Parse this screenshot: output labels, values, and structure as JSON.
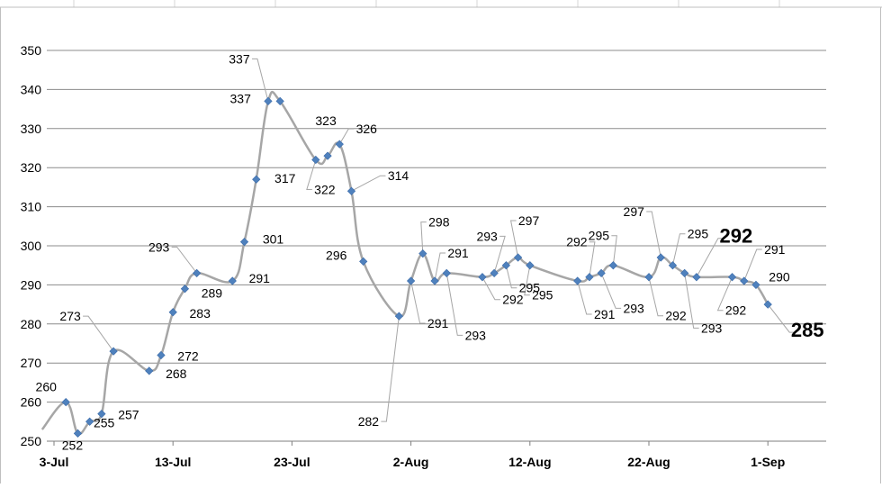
{
  "chart_data": {
    "type": "line",
    "title": "",
    "xlabel": "",
    "ylabel": "",
    "ylim": [
      250,
      350
    ],
    "yticks": [
      250,
      260,
      270,
      280,
      290,
      300,
      310,
      320,
      330,
      340,
      350
    ],
    "xticks": [
      "3-Jul",
      "13-Jul",
      "23-Jul",
      "2-Aug",
      "12-Aug",
      "22-Aug",
      "1-Sep"
    ],
    "grid": "horizontal",
    "legend": "none",
    "line_color": "#a6a6a6",
    "marker_color": "#4f81bd",
    "series": [
      {
        "points": [
          {
            "x": "2-Jul",
            "y": 253
          },
          {
            "x": "4-Jul",
            "y": 260,
            "label": "260"
          },
          {
            "x": "5-Jul",
            "y": 252,
            "label": "252"
          },
          {
            "x": "6-Jul",
            "y": 255,
            "label": "255"
          },
          {
            "x": "7-Jul",
            "y": 257,
            "label": "257"
          },
          {
            "x": "8-Jul",
            "y": 273,
            "label": "273"
          },
          {
            "x": "11-Jul",
            "y": 268,
            "label": "268"
          },
          {
            "x": "12-Jul",
            "y": 272,
            "label": "272"
          },
          {
            "x": "13-Jul",
            "y": 283,
            "label": "283"
          },
          {
            "x": "14-Jul",
            "y": 289,
            "label": "289"
          },
          {
            "x": "15-Jul",
            "y": 293,
            "label": "293"
          },
          {
            "x": "18-Jul",
            "y": 291,
            "label": "291"
          },
          {
            "x": "19-Jul",
            "y": 301,
            "label": "301"
          },
          {
            "x": "20-Jul",
            "y": 317,
            "label": "317"
          },
          {
            "x": "21-Jul",
            "y": 337,
            "label": "337"
          },
          {
            "x": "22-Jul",
            "y": 337,
            "label": "337"
          },
          {
            "x": "25-Jul",
            "y": 322,
            "label": "322"
          },
          {
            "x": "26-Jul",
            "y": 323,
            "label": "323"
          },
          {
            "x": "27-Jul",
            "y": 326,
            "label": "326"
          },
          {
            "x": "28-Jul",
            "y": 314,
            "label": "314"
          },
          {
            "x": "29-Jul",
            "y": 296,
            "label": "296"
          },
          {
            "x": "1-Aug",
            "y": 282,
            "label": "282"
          },
          {
            "x": "2-Aug",
            "y": 291,
            "label": "291"
          },
          {
            "x": "3-Aug",
            "y": 298,
            "label": "298"
          },
          {
            "x": "4-Aug",
            "y": 291,
            "label": "291"
          },
          {
            "x": "5-Aug",
            "y": 293,
            "label": "293"
          },
          {
            "x": "8-Aug",
            "y": 292,
            "label": "292"
          },
          {
            "x": "9-Aug",
            "y": 293,
            "label": "293"
          },
          {
            "x": "10-Aug",
            "y": 295,
            "label": "295"
          },
          {
            "x": "11-Aug",
            "y": 297,
            "label": "297"
          },
          {
            "x": "12-Aug",
            "y": 295,
            "label": "295"
          },
          {
            "x": "16-Aug",
            "y": 291,
            "label": "291"
          },
          {
            "x": "17-Aug",
            "y": 292,
            "label": "292"
          },
          {
            "x": "18-Aug",
            "y": 293,
            "label": "293"
          },
          {
            "x": "19-Aug",
            "y": 295,
            "label": "295"
          },
          {
            "x": "22-Aug",
            "y": 292,
            "label": "292"
          },
          {
            "x": "23-Aug",
            "y": 297,
            "label": "297"
          },
          {
            "x": "24-Aug",
            "y": 295,
            "label": "295"
          },
          {
            "x": "25-Aug",
            "y": 293,
            "label": "293"
          },
          {
            "x": "26-Aug",
            "y": 292,
            "label": "292"
          },
          {
            "x": "29-Aug",
            "y": 292,
            "label": "292"
          },
          {
            "x": "30-Aug",
            "y": 291,
            "label": "291"
          },
          {
            "x": "31-Aug",
            "y": 290,
            "label": "290"
          },
          {
            "x": "1-Sep",
            "y": 285,
            "label": "285"
          }
        ]
      }
    ]
  }
}
